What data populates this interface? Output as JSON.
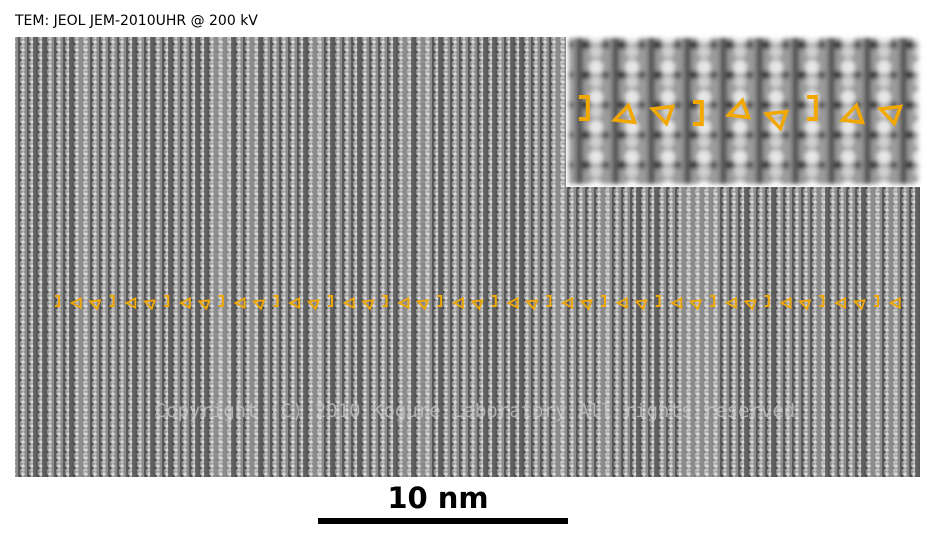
{
  "header": {
    "title": "TEM: JEOL JEM-2010UHR @ 200 kV"
  },
  "image": {
    "watermark": "Copyright (C) 2010 Kogure Laboratory All rights reserved"
  },
  "scale_bar": {
    "label": "10 nm"
  }
}
